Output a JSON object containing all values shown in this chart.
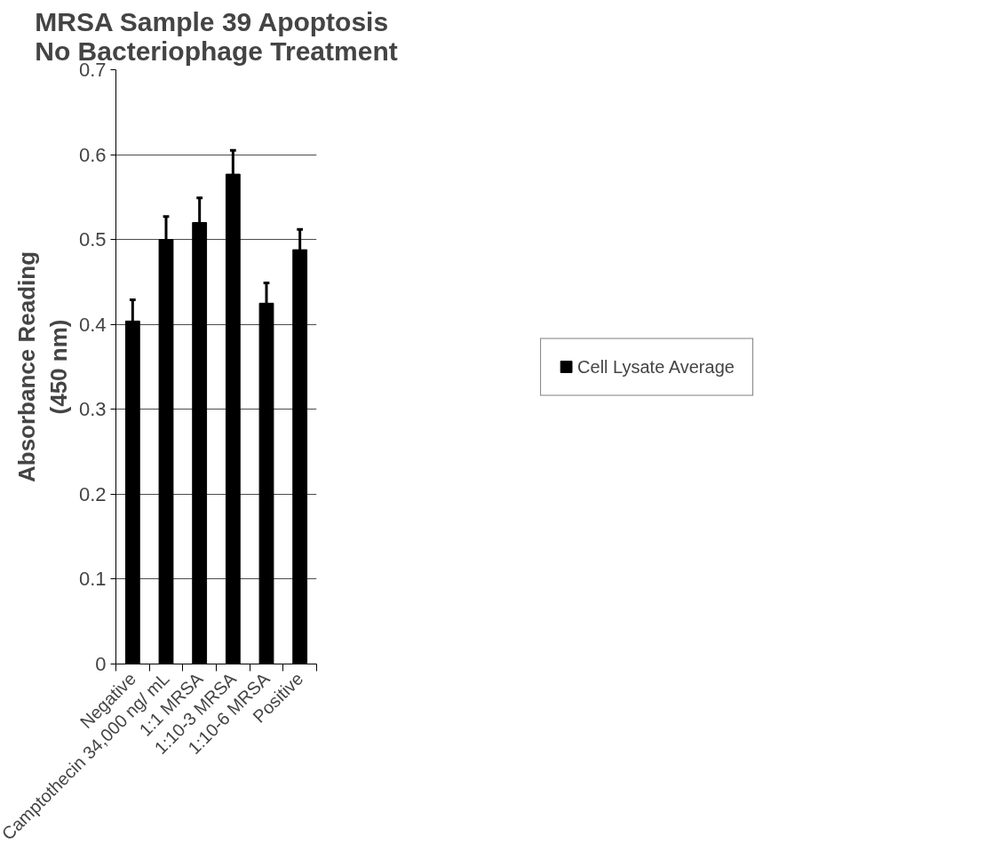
{
  "chart_data": {
    "type": "bar",
    "title": "MRSA Sample 39 Apoptosis\nNo Bacteriophage Treatment",
    "ylabel": "Absorbance Reading\n(450 nm)",
    "categories": [
      "Negative",
      "Camptothecin 34,000 ng/ mL",
      "1:1 MRSA",
      "1:10-3 MRSA",
      "1:10-6 MRSA",
      "Positive"
    ],
    "series": [
      {
        "name": "Cell Lysate Average",
        "color": "#000000",
        "values": [
          0.404,
          0.5,
          0.52,
          0.577,
          0.425,
          0.488
        ],
        "errors": [
          [
            0.404,
            0.429
          ],
          [
            0.5,
            0.527
          ],
          [
            0.52,
            0.549
          ],
          [
            0.577,
            0.605
          ],
          [
            0.425,
            0.449
          ],
          [
            0.488,
            0.512
          ]
        ]
      }
    ],
    "ylim": [
      0,
      0.7
    ],
    "yticks": [
      0,
      0.1,
      0.2,
      0.3,
      0.4,
      0.5,
      0.6,
      0.7
    ],
    "grid": "y",
    "legend": "right"
  }
}
